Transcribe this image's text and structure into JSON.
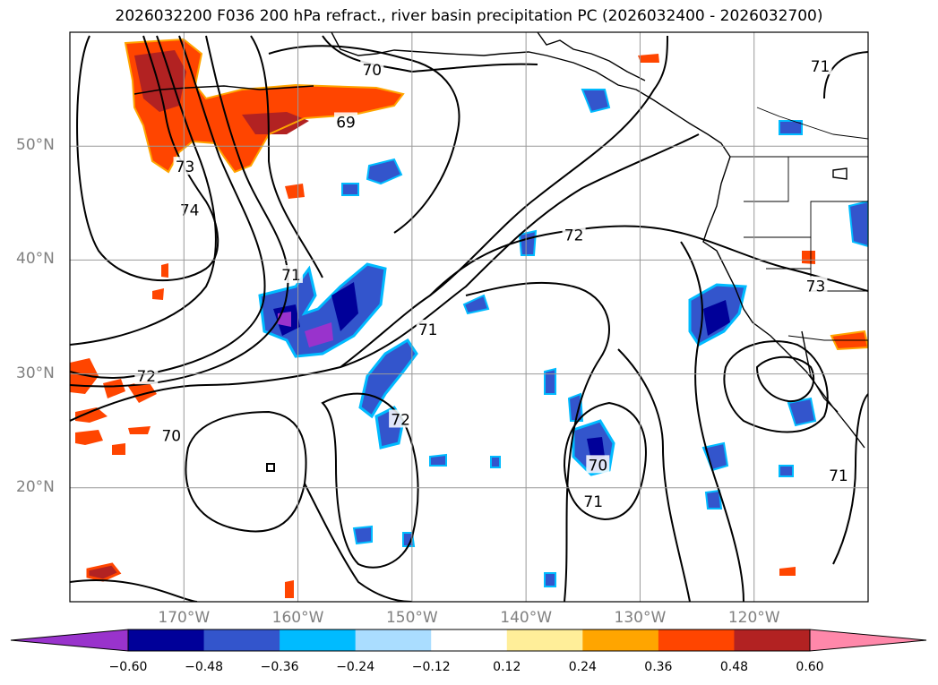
{
  "title": "2026032200 F036 200 hPa refract., river basin precipitation PC (2026032400 - 2026032700)",
  "map": {
    "projection": "PlateCarree",
    "extent": {
      "lon_min": -180,
      "lon_max": -110,
      "lat_min": 10,
      "lat_max": 60
    },
    "lat_ticks": [
      {
        "lat": 50,
        "label": "50°N"
      },
      {
        "lat": 40,
        "label": "40°N"
      },
      {
        "lat": 30,
        "label": "30°N"
      },
      {
        "lat": 20,
        "label": "20°N"
      }
    ],
    "lon_ticks": [
      {
        "lon": -170,
        "label": "170°W"
      },
      {
        "lon": -160,
        "label": "160°W"
      },
      {
        "lon": -150,
        "label": "150°W"
      },
      {
        "lon": -140,
        "label": "140°W"
      },
      {
        "lon": -130,
        "label": "130°W"
      },
      {
        "lon": -120,
        "label": "120°W"
      }
    ],
    "grid": true,
    "contour_labels": [
      {
        "text": "70",
        "lon": -153.5,
        "lat": 56.7
      },
      {
        "text": "69",
        "lon": -155.8,
        "lat": 52.1
      },
      {
        "text": "73",
        "lon": -169.9,
        "lat": 48.2
      },
      {
        "text": "74",
        "lon": -169.5,
        "lat": 44.4
      },
      {
        "text": "71",
        "lon": -160.6,
        "lat": 38.7
      },
      {
        "text": "71",
        "lon": -148.6,
        "lat": 33.9
      },
      {
        "text": "72",
        "lon": -173.3,
        "lat": 29.8
      },
      {
        "text": "70",
        "lon": -171.1,
        "lat": 24.6
      },
      {
        "text": "72",
        "lon": -151.0,
        "lat": 26.0
      },
      {
        "text": "72",
        "lon": -135.8,
        "lat": 42.2
      },
      {
        "text": "73",
        "lon": -114.6,
        "lat": 37.7
      },
      {
        "text": "71",
        "lon": -114.2,
        "lat": 57.0
      },
      {
        "text": "70",
        "lon": -133.7,
        "lat": 22.0
      },
      {
        "text": "71",
        "lon": -134.1,
        "lat": 18.8
      },
      {
        "text": "71",
        "lon": -112.6,
        "lat": 21.1
      }
    ]
  },
  "colorbar": {
    "ticks": [
      "−0.60",
      "−0.48",
      "−0.36",
      "−0.24",
      "−0.12",
      "0.12",
      "0.24",
      "0.36",
      "0.48",
      "0.60"
    ],
    "colors": [
      "#9933cc",
      "#000099",
      "#3355cc",
      "#00bbff",
      "#aaddff",
      "#ffffff",
      "#ffee99",
      "#ffa500",
      "#ff4500",
      "#b22222",
      "#ff88aa"
    ],
    "extend": "both"
  },
  "chart_data": {
    "type": "heatmap",
    "title": "2026032200 F036 200 hPa refract., river basin precipitation PC (2026032400 - 2026032700)",
    "xlim": [
      -180,
      -110
    ],
    "ylim": [
      10,
      60
    ],
    "levels": [
      -0.6,
      -0.48,
      -0.36,
      -0.24,
      -0.12,
      0.12,
      0.24,
      0.36,
      0.48,
      0.6
    ],
    "contour_levels_labeled": [
      69,
      70,
      71,
      72,
      73,
      74
    ]
  }
}
